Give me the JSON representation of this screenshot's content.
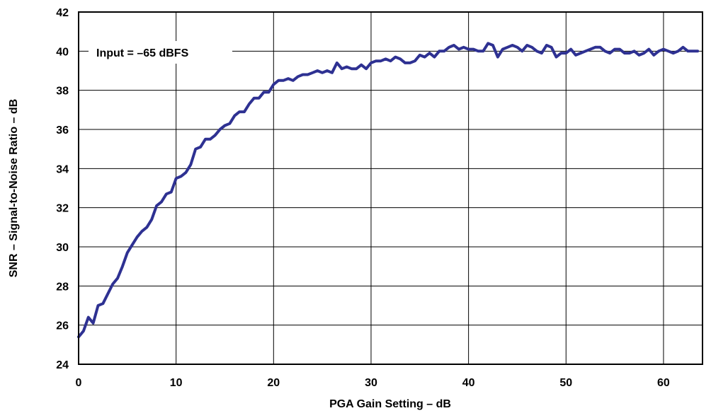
{
  "chart_data": {
    "type": "line",
    "title": "",
    "xlabel": "PGA Gain Setting – dB",
    "ylabel": "SNR – Signal-to-Noise Ratio  – dB",
    "xlim": [
      0,
      64
    ],
    "ylim": [
      24,
      42
    ],
    "x_ticks": [
      0,
      10,
      20,
      30,
      40,
      50,
      60
    ],
    "y_ticks": [
      24,
      26,
      28,
      30,
      32,
      34,
      36,
      38,
      40,
      42
    ],
    "grid": true,
    "annotation": "Input = –65 dBFS",
    "line_color": "#2e3192",
    "series": [
      {
        "x": [
          0,
          0.5,
          1,
          1.5,
          2,
          2.5,
          3,
          3.5,
          4,
          4.5,
          5,
          5.5,
          6,
          6.5,
          7,
          7.5,
          8,
          8.5,
          9,
          9.5,
          10,
          10.5,
          11,
          11.5,
          12,
          12.5,
          13,
          13.5,
          14,
          14.5,
          15,
          15.5,
          16,
          16.5,
          17,
          17.5,
          18,
          18.5,
          19,
          19.5,
          20,
          20.5,
          21,
          21.5,
          22,
          22.5,
          23,
          23.5,
          24,
          24.5,
          25,
          25.5,
          26,
          26.5,
          27,
          27.5,
          28,
          28.5,
          29,
          29.5,
          30,
          30.5,
          31,
          31.5,
          32,
          32.5,
          33,
          33.5,
          34,
          34.5,
          35,
          35.5,
          36,
          36.5,
          37,
          37.5,
          38,
          38.5,
          39,
          39.5,
          40,
          40.5,
          41,
          41.5,
          42,
          42.5,
          43,
          43.5,
          44,
          44.5,
          45,
          45.5,
          46,
          46.5,
          47,
          47.5,
          48,
          48.5,
          49,
          49.5,
          50,
          50.5,
          51,
          51.5,
          52,
          52.5,
          53,
          53.5,
          54,
          54.5,
          55,
          55.5,
          56,
          56.5,
          57,
          57.5,
          58,
          58.5,
          59,
          59.5,
          60,
          60.5,
          61,
          61.5,
          62,
          62.5,
          63,
          63.5
        ],
        "y": [
          25.4,
          25.7,
          26.4,
          26.1,
          27.0,
          27.1,
          27.6,
          28.1,
          28.4,
          29.0,
          29.7,
          30.1,
          30.5,
          30.8,
          31.0,
          31.4,
          32.1,
          32.3,
          32.7,
          32.8,
          33.5,
          33.6,
          33.8,
          34.2,
          35.0,
          35.1,
          35.5,
          35.5,
          35.7,
          36.0,
          36.2,
          36.3,
          36.7,
          36.9,
          36.9,
          37.3,
          37.6,
          37.6,
          37.9,
          37.9,
          38.3,
          38.5,
          38.5,
          38.6,
          38.5,
          38.7,
          38.8,
          38.8,
          38.9,
          39.0,
          38.9,
          39.0,
          38.9,
          39.4,
          39.1,
          39.2,
          39.1,
          39.1,
          39.3,
          39.1,
          39.4,
          39.5,
          39.5,
          39.6,
          39.5,
          39.7,
          39.6,
          39.4,
          39.4,
          39.5,
          39.8,
          39.7,
          39.9,
          39.7,
          40.0,
          40.0,
          40.2,
          40.3,
          40.1,
          40.2,
          40.1,
          40.1,
          40.0,
          40.0,
          40.4,
          40.3,
          39.7,
          40.1,
          40.2,
          40.3,
          40.2,
          40.0,
          40.3,
          40.2,
          40.0,
          39.9,
          40.3,
          40.2,
          39.7,
          39.9,
          39.9,
          40.1,
          39.8,
          39.9,
          40.0,
          40.1,
          40.2,
          40.2,
          40.0,
          39.9,
          40.1,
          40.1,
          39.9,
          39.9,
          40.0,
          39.8,
          39.9,
          40.1,
          39.8,
          40.0,
          40.1,
          40.0,
          39.9,
          40.0,
          40.2,
          40.0,
          40.0,
          40.0
        ]
      }
    ]
  }
}
